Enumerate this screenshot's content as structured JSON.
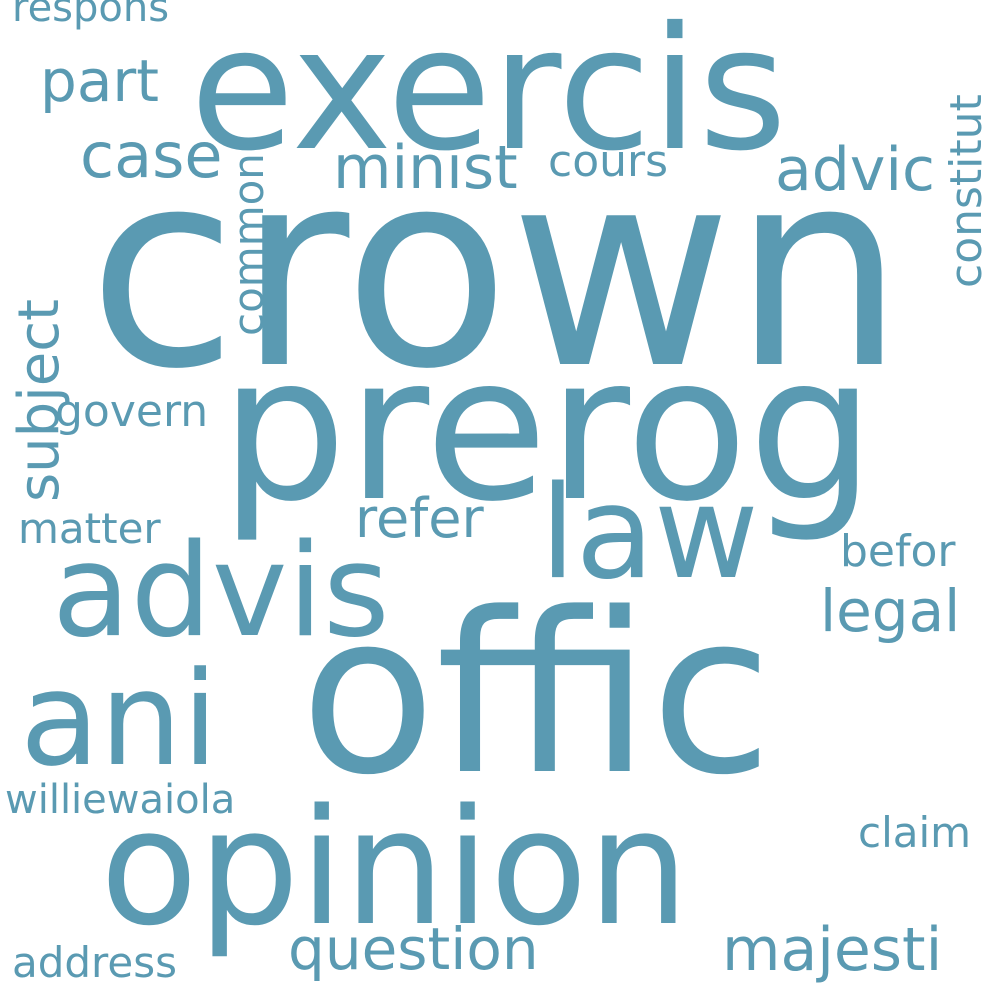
{
  "colors": {
    "text": "#5a9ab2",
    "background": "#ffffff"
  },
  "words": {
    "crown": "crown",
    "exercis": "exercis",
    "prerog": "prerog",
    "offic": "offic",
    "opinion": "opinion",
    "advis": "advis",
    "ani": "ani",
    "law": "law",
    "case": "case",
    "part": "part",
    "respons": "respons",
    "minist": "minist",
    "cours": "cours",
    "advic": "advic",
    "constitut": "constitut",
    "common": "common",
    "subject": "subject",
    "govern": "govern",
    "refer": "refer",
    "matter": "matter",
    "befor": "befor",
    "legal": "legal",
    "williewaiola": "williewaiola",
    "claim": "claim",
    "question": "question",
    "majesti": "majesti",
    "address": "address"
  }
}
